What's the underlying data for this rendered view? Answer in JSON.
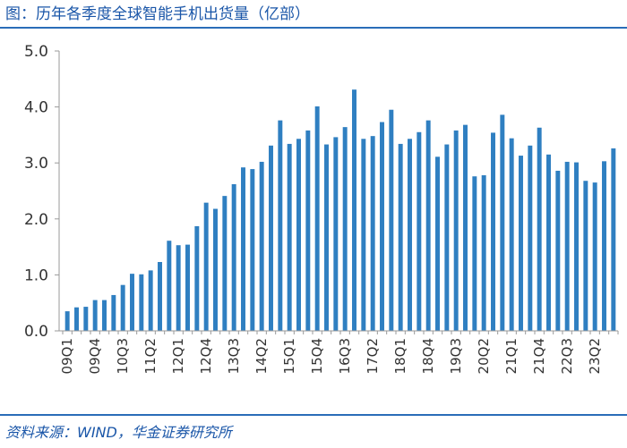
{
  "header": {
    "title": "图：历年各季度全球智能手机出货量（亿部）"
  },
  "footer": {
    "source": "资料来源：WIND，华金证券研究所"
  },
  "colors": {
    "bar": "#2f7fc1",
    "rule": "#2a6db8",
    "title_text": "#1a56a8"
  },
  "chart_data": {
    "type": "bar",
    "title": "图：历年各季度全球智能手机出货量（亿部）",
    "xlabel": "",
    "ylabel": "",
    "ylim": [
      0,
      5
    ],
    "yticks": [
      "0.0",
      "1.0",
      "2.0",
      "3.0",
      "4.0",
      "5.0"
    ],
    "grid": false,
    "legend": "none",
    "categories": [
      "09Q1",
      "09Q2",
      "09Q3",
      "09Q4",
      "10Q1",
      "10Q2",
      "10Q3",
      "10Q4",
      "11Q1",
      "11Q2",
      "11Q3",
      "11Q4",
      "12Q1",
      "12Q2",
      "12Q3",
      "12Q4",
      "13Q1",
      "13Q2",
      "13Q3",
      "13Q4",
      "14Q1",
      "14Q2",
      "14Q3",
      "14Q4",
      "15Q1",
      "15Q2",
      "15Q3",
      "15Q4",
      "16Q1",
      "16Q2",
      "16Q3",
      "16Q4",
      "17Q1",
      "17Q2",
      "17Q3",
      "17Q4",
      "18Q1",
      "18Q2",
      "18Q3",
      "18Q4",
      "19Q1",
      "19Q2",
      "19Q3",
      "19Q4",
      "20Q1",
      "20Q2",
      "20Q3",
      "20Q4",
      "21Q1",
      "21Q2",
      "21Q3",
      "21Q4",
      "22Q1",
      "22Q2",
      "22Q3",
      "22Q4",
      "23Q1",
      "23Q2",
      "23Q3",
      "23Q4"
    ],
    "visible_tick_labels": [
      "09Q1",
      "09Q4",
      "10Q3",
      "11Q2",
      "12Q1",
      "12Q4",
      "13Q3",
      "14Q2",
      "15Q1",
      "15Q4",
      "16Q3",
      "17Q2",
      "18Q1",
      "18Q4",
      "19Q3",
      "20Q2",
      "21Q1",
      "21Q4",
      "22Q3",
      "23Q2"
    ],
    "values": [
      0.35,
      0.42,
      0.43,
      0.55,
      0.55,
      0.64,
      0.82,
      1.02,
      1.01,
      1.08,
      1.23,
      1.61,
      1.53,
      1.54,
      1.87,
      2.29,
      2.18,
      2.41,
      2.62,
      2.92,
      2.89,
      3.02,
      3.31,
      3.76,
      3.34,
      3.43,
      3.58,
      4.01,
      3.33,
      3.46,
      3.64,
      4.31,
      3.43,
      3.48,
      3.73,
      3.95,
      3.34,
      3.43,
      3.55,
      3.76,
      3.11,
      3.33,
      3.58,
      3.68,
      2.76,
      2.78,
      3.54,
      3.86,
      3.44,
      3.13,
      3.31,
      3.63,
      3.15,
      2.86,
      3.02,
      3.01,
      2.68,
      2.65,
      3.03,
      3.26
    ]
  }
}
